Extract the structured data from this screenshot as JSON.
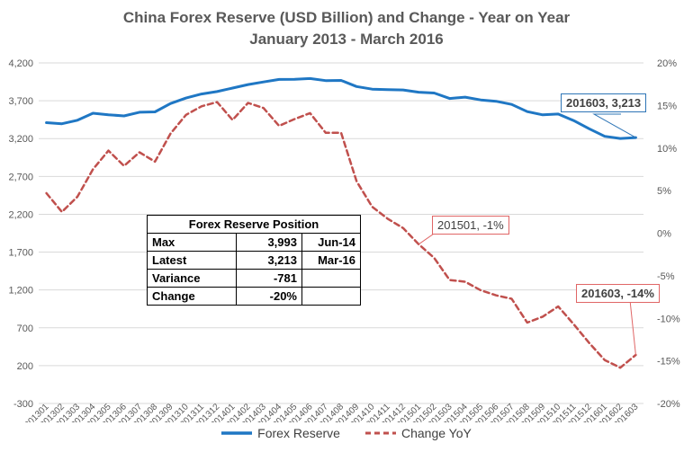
{
  "chart_data": {
    "type": "line",
    "title": "China Forex Reserve (USD Billion) and Change - Year on Year",
    "subtitle": "January 2013 - March 2016",
    "x": [
      "201301",
      "201302",
      "201303",
      "201304",
      "201305",
      "201306",
      "201307",
      "201308",
      "201309",
      "201310",
      "201311",
      "201312",
      "201401",
      "201402",
      "201403",
      "201404",
      "201405",
      "201406",
      "201407",
      "201408",
      "201409",
      "201410",
      "201411",
      "201412",
      "201501",
      "201502",
      "201503",
      "201504",
      "201505",
      "201506",
      "201507",
      "201508",
      "201509",
      "201510",
      "201511",
      "201512",
      "201601",
      "201602",
      "201603"
    ],
    "x_tick_labels": [
      "201301",
      "201302",
      "201303",
      "201304",
      "201305",
      "201306",
      "201307",
      "201308",
      "201309",
      "201310",
      "201311",
      "201312",
      "201401",
      "201402",
      "201403",
      "201404",
      "201405",
      "201406",
      "201407",
      "201408",
      "201409",
      "201410",
      "201411",
      "201412",
      "201501",
      "201502",
      "201503",
      "201504",
      "201505",
      "201506",
      "201507",
      "201508",
      "201509",
      "201510",
      "201511",
      "201512",
      "201601",
      "201602",
      "201603"
    ],
    "y_left": {
      "ticks": [
        "4,200",
        "3,700",
        "3,200",
        "2,700",
        "2,200",
        "1,700",
        "1,200",
        "700",
        "200",
        "-300"
      ],
      "ylim": [
        -300,
        4200
      ]
    },
    "y_right": {
      "ticks": [
        "20%",
        "15%",
        "10%",
        "5%",
        "0%",
        "-5%",
        "-10%",
        "-15%",
        "-20%"
      ],
      "ylim": [
        -20,
        20
      ]
    },
    "series": [
      {
        "name": "Forex Reserve",
        "axis": "left",
        "color": "#1f77c4",
        "style": "solid",
        "values": [
          3410,
          3396,
          3442,
          3535,
          3515,
          3500,
          3548,
          3553,
          3663,
          3736,
          3789,
          3821,
          3867,
          3914,
          3948,
          3981,
          3984,
          3993,
          3966,
          3969,
          3888,
          3853,
          3847,
          3843,
          3813,
          3802,
          3730,
          3748,
          3711,
          3693,
          3651,
          3557,
          3514,
          3525,
          3438,
          3330,
          3230,
          3202,
          3213
        ]
      },
      {
        "name": "Change YoY",
        "axis": "right",
        "color": "#c0504d",
        "style": "dashed",
        "values": [
          4.7,
          2.5,
          4.3,
          7.5,
          9.7,
          7.9,
          9.5,
          8.4,
          11.7,
          13.9,
          14.9,
          15.4,
          13.3,
          15.3,
          14.7,
          12.6,
          13.4,
          14.1,
          11.8,
          11.8,
          6.1,
          3.1,
          1.7,
          0.6,
          -1.3,
          -2.9,
          -5.5,
          -5.7,
          -6.7,
          -7.3,
          -7.7,
          -10.5,
          -9.8,
          -8.6,
          -10.7,
          -12.9,
          -14.9,
          -15.8,
          -14.3
        ]
      }
    ],
    "legend_position": "bottom",
    "grid": "horizontal"
  },
  "annotations": {
    "reserve_latest": "201603,  3,213",
    "yoy_jan15": "201501, -1%",
    "yoy_latest": "201603, -14%"
  },
  "stats_table": {
    "header": "Forex Reserve Position",
    "rows": [
      {
        "label": "Max",
        "value": "3,993",
        "date": "Jun-14"
      },
      {
        "label": "Latest",
        "value": "3,213",
        "date": "Mar-16"
      },
      {
        "label": "Variance",
        "value": "-781",
        "date": ""
      },
      {
        "label": "Change",
        "value": "-20%",
        "date": ""
      }
    ]
  },
  "legend": {
    "reserve": "Forex Reserve",
    "yoy": "Change YoY"
  }
}
